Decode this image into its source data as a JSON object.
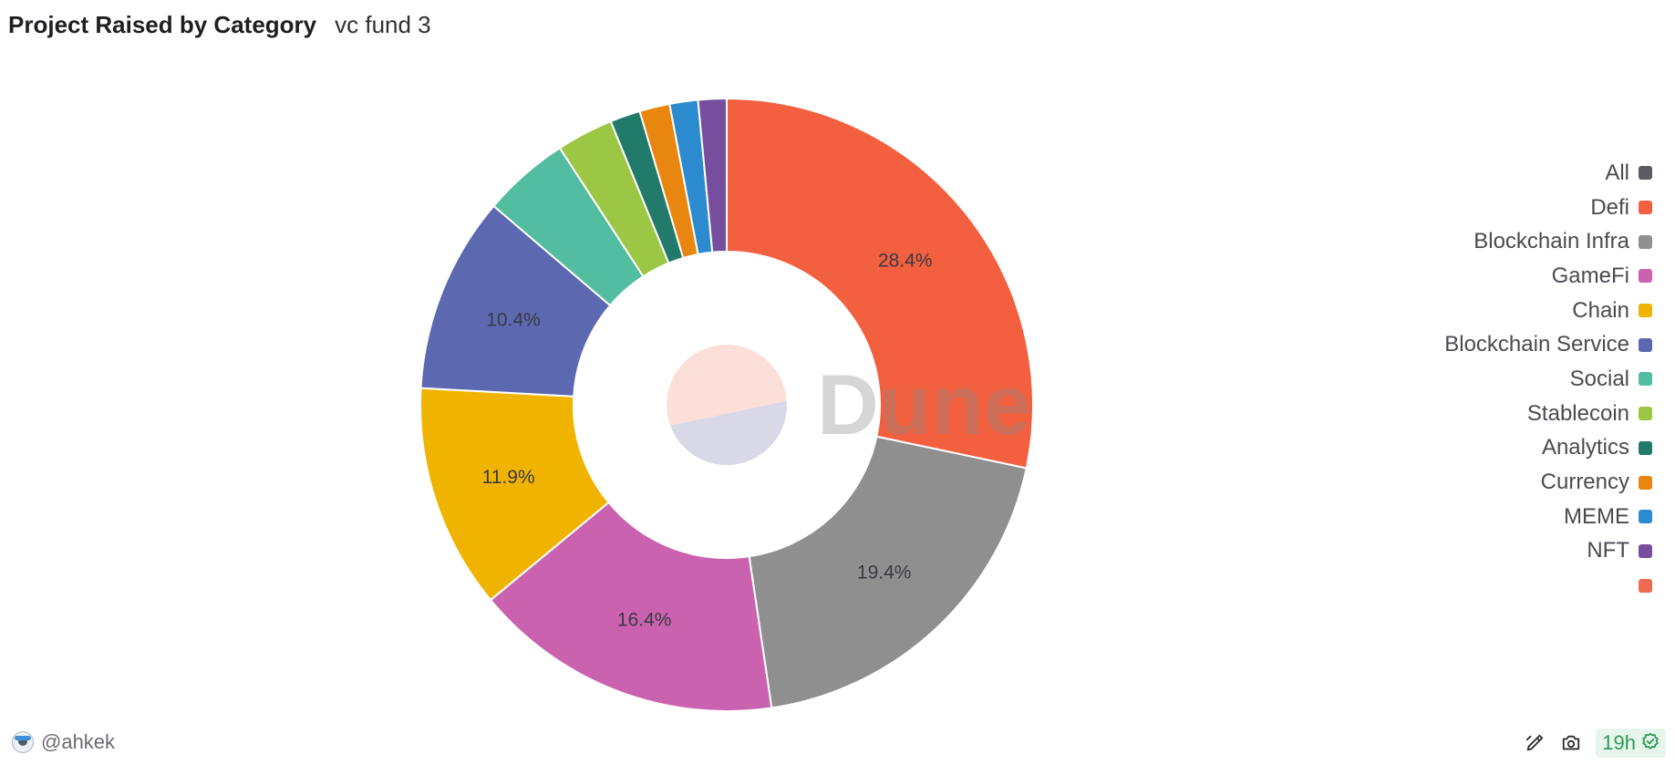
{
  "header": {
    "title": "Project Raised by Category",
    "subtitle": "vc fund 3"
  },
  "chart_data": {
    "type": "pie",
    "donut": true,
    "categories": [
      "Defi",
      "Blockchain Infra",
      "GameFi",
      "Chain",
      "Blockchain Service",
      "Social",
      "Stablecoin",
      "Analytics",
      "Currency",
      "MEME",
      "NFT"
    ],
    "values": [
      28.4,
      19.4,
      16.4,
      11.9,
      10.4,
      4.6,
      3.0,
      1.6,
      1.6,
      1.5,
      1.5
    ],
    "data_labels": [
      "28.4%",
      "19.4%",
      "16.4%",
      "11.9%",
      "10.4%",
      "",
      "",
      "",
      "",
      "",
      ""
    ],
    "colors": [
      "#f2603f",
      "#8f8f8f",
      "#cb62b0",
      "#f0b400",
      "#5c69b0",
      "#52bda0",
      "#9cc744",
      "#217a6a",
      "#e8860f",
      "#2c8bcf",
      "#774e9e"
    ],
    "legend_position": "right",
    "legend": [
      {
        "label": "All",
        "color": "#5b5b62"
      },
      {
        "label": "Defi",
        "color": "#f2603f"
      },
      {
        "label": "Blockchain Infra",
        "color": "#8f8f8f"
      },
      {
        "label": "GameFi",
        "color": "#cb62b0"
      },
      {
        "label": "Chain",
        "color": "#f0b400"
      },
      {
        "label": "Blockchain Service",
        "color": "#5c69b0"
      },
      {
        "label": "Social",
        "color": "#52bda0"
      },
      {
        "label": "Stablecoin",
        "color": "#9cc744"
      },
      {
        "label": "Analytics",
        "color": "#217a6a"
      },
      {
        "label": "Currency",
        "color": "#e8860f"
      },
      {
        "label": "MEME",
        "color": "#2c8bcf"
      },
      {
        "label": "NFT",
        "color": "#774e9e"
      },
      {
        "label": "",
        "color": "#ef6a53"
      }
    ]
  },
  "watermark": {
    "text": "Dune",
    "logo_colors": [
      "#fcdfd8",
      "#d8d8e6"
    ]
  },
  "footer": {
    "author": "@ahkek",
    "refresh_label": "19h",
    "icons": [
      "edit-chart-icon",
      "camera-icon",
      "check-circle-icon"
    ],
    "refresh_color": "#2e9a55"
  }
}
